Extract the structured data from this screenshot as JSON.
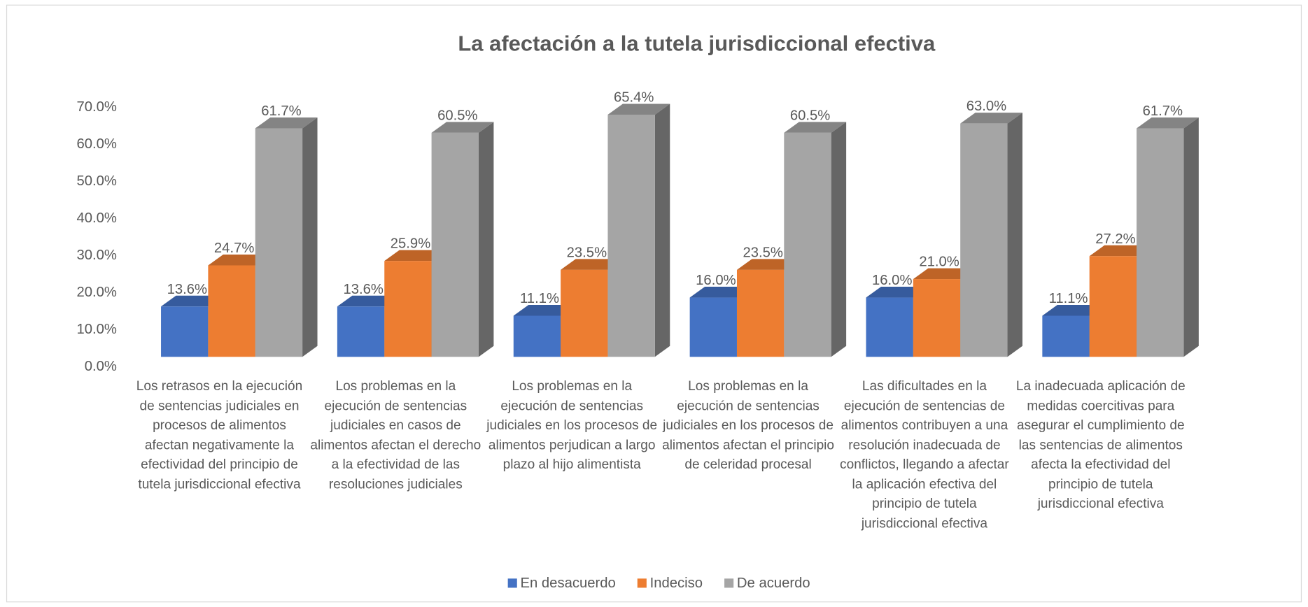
{
  "chart_data": {
    "type": "bar3d",
    "title": "La afectación a la tutela jurisdiccional efectiva",
    "categories": [
      "Los retrasos en la ejecución de sentencias judiciales en procesos de alimentos afectan negativamente la efectividad del principio de tutela jurisdiccional efectiva",
      "Los problemas en la ejecución de sentencias judiciales en casos de alimentos afectan el derecho a la efectividad de las resoluciones judiciales",
      "Los problemas en la ejecución de sentencias judiciales en los procesos de alimentos perjudican a largo plazo al hijo alimentista",
      "Los problemas en la ejecución de sentencias judiciales en los procesos de alimentos afectan el principio de celeridad procesal",
      "Las dificultades en la ejecución de sentencias de alimentos contribuyen a una resolución inadecuada de conflictos, llegando a afectar la aplicación efectiva del principio de tutela jurisdiccional efectiva",
      "La inadecuada aplicación de medidas coercitivas para asegurar el cumplimiento de las sentencias de alimentos afecta la efectividad del principio de tutela jurisdiccional efectiva"
    ],
    "series": [
      {
        "name": "En desacuerdo",
        "color": "#4472c4",
        "values": [
          13.6,
          13.6,
          11.1,
          16.0,
          16.0,
          11.1
        ],
        "value_labels": [
          "13.6%",
          "13.6%",
          "11.1%",
          "16.0%",
          "16.0%",
          "11.1%"
        ]
      },
      {
        "name": "Indeciso",
        "color": "#ed7d31",
        "values": [
          24.7,
          25.9,
          23.5,
          23.5,
          21.0,
          27.2
        ],
        "value_labels": [
          "24.7%",
          "25.9%",
          "23.5%",
          "23.5%",
          "21.0%",
          "27.2%"
        ]
      },
      {
        "name": "De acuerdo",
        "color": "#a5a5a5",
        "values": [
          61.7,
          60.5,
          65.4,
          60.5,
          63.0,
          61.7
        ],
        "value_labels": [
          "61.7%",
          "60.5%",
          "65.4%",
          "60.5%",
          "63.0%",
          "61.7%"
        ]
      }
    ],
    "ylim": [
      0,
      70
    ],
    "yticks": [
      {
        "value": 0,
        "label": "0.0%"
      },
      {
        "value": 10,
        "label": "10.0%"
      },
      {
        "value": 20,
        "label": "20.0%"
      },
      {
        "value": 30,
        "label": "30.0%"
      },
      {
        "value": 40,
        "label": "40.0%"
      },
      {
        "value": 50,
        "label": "50.0%"
      },
      {
        "value": 60,
        "label": "60.0%"
      },
      {
        "value": 70,
        "label": "70.0%"
      }
    ],
    "legend": "bottom"
  }
}
